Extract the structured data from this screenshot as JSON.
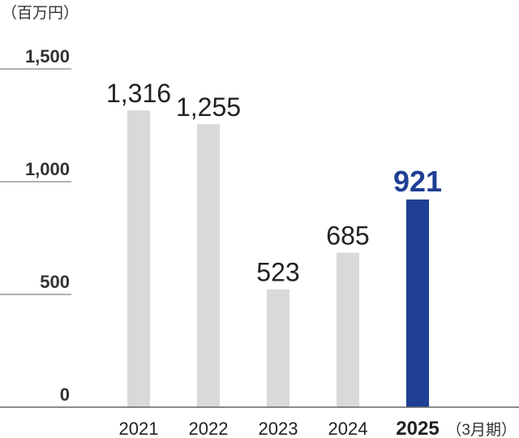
{
  "chart_data": {
    "type": "bar",
    "unit_label": "（百万円）",
    "period_label": "（3月期）",
    "categories": [
      "2021",
      "2022",
      "2023",
      "2024",
      "2025"
    ],
    "values": [
      1316,
      1255,
      523,
      685,
      921
    ],
    "data_labels": [
      "1,316",
      "1,255",
      "523",
      "685",
      "921"
    ],
    "highlight_category": "2025",
    "y_ticks": [
      {
        "value": 1500,
        "label": "1,500"
      },
      {
        "value": 1000,
        "label": "1,000"
      },
      {
        "value": 500,
        "label": "500"
      },
      {
        "value": 0,
        "label": "0"
      }
    ],
    "ylim": [
      0,
      1500
    ],
    "grid": false,
    "colors": {
      "bar": "#d9d9d9",
      "bar_highlight": "#1e3f94",
      "label": "#222222",
      "label_highlight": "#1e3f94",
      "axis": "#666666",
      "tick_rule": "#999999"
    }
  }
}
